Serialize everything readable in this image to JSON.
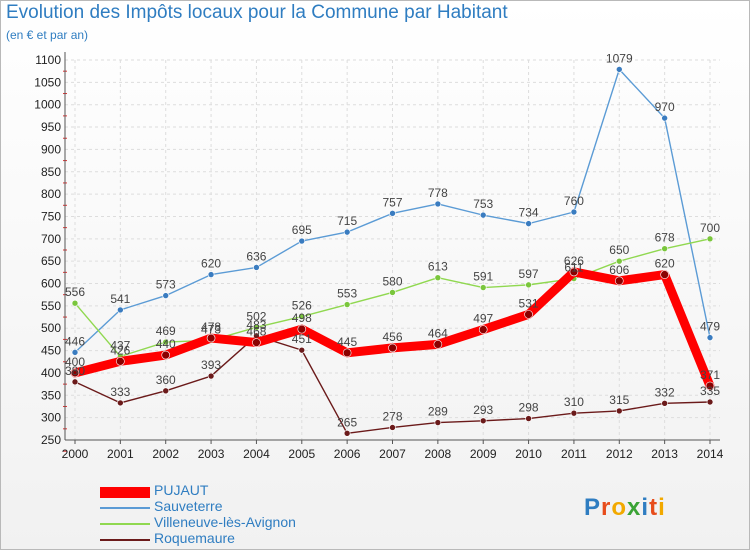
{
  "header": {
    "title": "Evolution des Impôts locaux pour la Commune par Habitant",
    "subtitle": "(en € et par an)"
  },
  "logo": {
    "text": "Proxiti",
    "letters": [
      "P",
      "r",
      "o",
      "x",
      "i",
      "t",
      "i"
    ],
    "colors": [
      "#2f7dc1",
      "#e74c1b",
      "#f2a900",
      "#3aa335",
      "#2f7dc1",
      "#e74c1b",
      "#f2a900"
    ]
  },
  "chart_data": {
    "type": "line",
    "title": "Evolution des Impôts locaux pour la Commune par Habitant",
    "subtitle": "(en € et par an)",
    "xlabel": "",
    "ylabel": "",
    "x": [
      "2000",
      "2001",
      "2002",
      "2003",
      "2004",
      "2005",
      "2006",
      "2007",
      "2008",
      "2009",
      "2010",
      "2011",
      "2012",
      "2013",
      "2014"
    ],
    "ylim": [
      250,
      1100
    ],
    "yticks": [
      250,
      300,
      350,
      400,
      450,
      500,
      550,
      600,
      650,
      700,
      750,
      800,
      850,
      900,
      950,
      1000,
      1050,
      1100
    ],
    "grid": true,
    "legend_position": "bottom-left",
    "series": [
      {
        "name": "PUJAUT",
        "color": "#ff0000",
        "values": [
          400,
          426,
          440,
          478,
          468,
          498,
          445,
          456,
          464,
          497,
          531,
          626,
          606,
          620,
          371
        ]
      },
      {
        "name": "Sauveterre",
        "color": "#5b9bd5",
        "values": [
          446,
          541,
          573,
          620,
          636,
          695,
          715,
          757,
          778,
          753,
          734,
          760,
          1079,
          970,
          479
        ]
      },
      {
        "name": "Villeneuve-lès-Avignon",
        "color": "#90d850",
        "values": [
          556,
          437,
          469,
          473,
          502,
          526,
          553,
          580,
          613,
          591,
          597,
          611,
          650,
          678,
          700
        ]
      },
      {
        "name": "Roquemaure",
        "color": "#6b1a1a",
        "values": [
          380,
          333,
          360,
          393,
          483,
          451,
          265,
          278,
          289,
          293,
          298,
          310,
          315,
          332,
          335
        ]
      }
    ]
  }
}
